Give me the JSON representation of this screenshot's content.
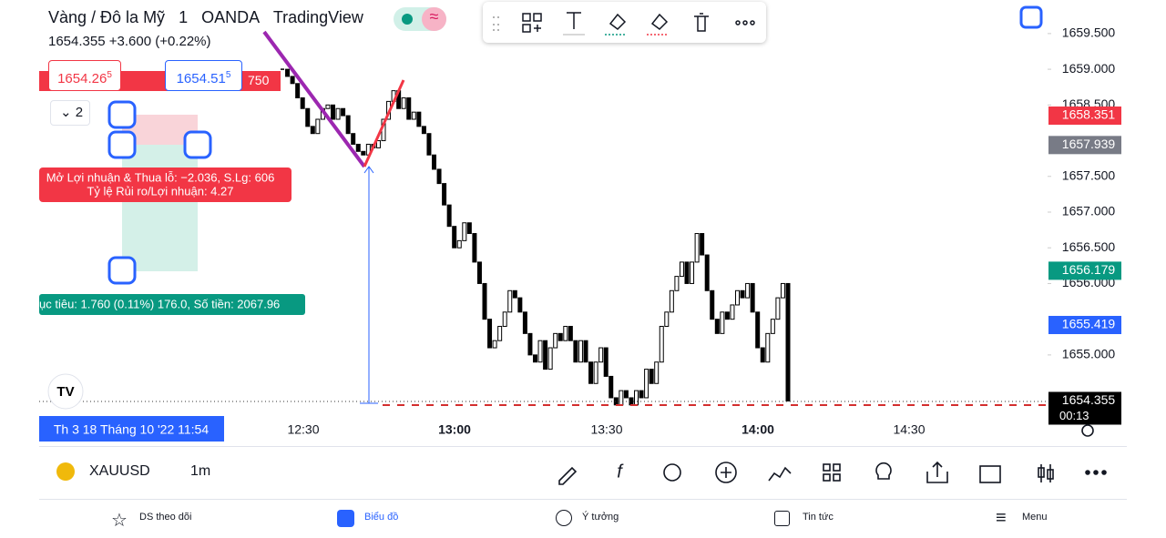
{
  "header": {
    "symbol_title": "Vàng / Đô la Mỹ",
    "interval": "1",
    "exchange": "OANDA",
    "source": "TradingView",
    "last_price": "1654.355",
    "change": "+3.600 (+0.22%)",
    "sell_price": "1654.26",
    "sell_price_pip": "5",
    "buy_price": "1654.51",
    "buy_price_pip": "5",
    "spread_badge": "750",
    "indicator_count": "2"
  },
  "position_tool": {
    "pnl_text": "Mở Lợi nhuận & Thua lỗ: −2.036, S.Lg: 606",
    "ratio_text": "Tỷ lệ Rủi ro/Lợi nhuận: 4.27",
    "target_text": "ục tiêu: 1.760 (0.11%) 176.0, Số tiền: 2067.96"
  },
  "price_axis": {
    "ylim": [
      1654.17,
      1659.97
    ],
    "yticks": [
      {
        "value": 1659.5,
        "label": "1659.500"
      },
      {
        "value": 1659.0,
        "label": "1659.000"
      },
      {
        "value": 1658.5,
        "label": "1658.500"
      },
      {
        "value": 1657.5,
        "label": "1657.500"
      },
      {
        "value": 1657.0,
        "label": "1657.000"
      },
      {
        "value": 1656.5,
        "label": "1656.500"
      },
      {
        "value": 1656.0,
        "label": "1656.000"
      },
      {
        "value": 1655.0,
        "label": "1655.000"
      }
    ],
    "badges": [
      {
        "value": 1658.351,
        "color": "#f23645"
      },
      {
        "value": 1657.939,
        "color": "#787b86"
      },
      {
        "value": 1656.179,
        "color": "#089981"
      },
      {
        "value": 1655.419,
        "color": "#2962ff"
      }
    ],
    "last_badge": {
      "value": 1654.355,
      "countdown": "00:13",
      "color": "#000000"
    }
  },
  "candles": {
    "closes": [
      1659.0,
      1658.9,
      1658.8,
      1658.6,
      1658.45,
      1658.2,
      1658.1,
      1658.3,
      1658.45,
      1658.5,
      1658.3,
      1658.45,
      1658.35,
      1658.1,
      1657.95,
      1657.85,
      1657.8,
      1657.95,
      1657.9,
      1658.0,
      1658.3,
      1658.55,
      1658.7,
      1658.45,
      1658.6,
      1658.3,
      1658.4,
      1658.2,
      1658.1,
      1657.8,
      1657.6,
      1657.4,
      1657.1,
      1656.8,
      1656.5,
      1656.6,
      1656.85,
      1656.7,
      1656.3,
      1656.0,
      1655.5,
      1655.1,
      1655.2,
      1655.4,
      1655.6,
      1655.9,
      1655.8,
      1655.6,
      1655.3,
      1655.0,
      1654.9,
      1655.2,
      1654.8,
      1655.1,
      1655.3,
      1655.2,
      1655.4,
      1655.2,
      1654.9,
      1655.2,
      1654.9,
      1654.6,
      1654.9,
      1655.1,
      1654.7,
      1654.4,
      1654.3,
      1654.5,
      1654.4,
      1654.3,
      1654.5,
      1654.4,
      1654.8,
      1654.6,
      1654.9,
      1655.4,
      1655.6,
      1655.9,
      1656.1,
      1656.3,
      1656.0,
      1656.3,
      1656.7,
      1656.4,
      1655.9,
      1655.5,
      1655.3,
      1655.6,
      1655.5,
      1655.7,
      1655.9,
      1655.8,
      1656.0,
      1655.6,
      1655.1,
      1654.9,
      1655.3,
      1655.5,
      1655.8,
      1656.0,
      1654.355
    ],
    "up_color": "#ffffff",
    "down_color": "#000000"
  },
  "time_axis": {
    "labels": [
      "12:30",
      "13:00",
      "13:30",
      "14:00",
      "14:30"
    ],
    "crosshair_label": "Th 3 18 Tháng 10 '22   11:54"
  },
  "toolbar": {
    "symbol": "XAUUSD",
    "interval": "1m"
  },
  "nav": [
    "DS theo dõi",
    "Biểu đồ",
    "Ý tưởng",
    "Tin tức",
    "Menu"
  ]
}
